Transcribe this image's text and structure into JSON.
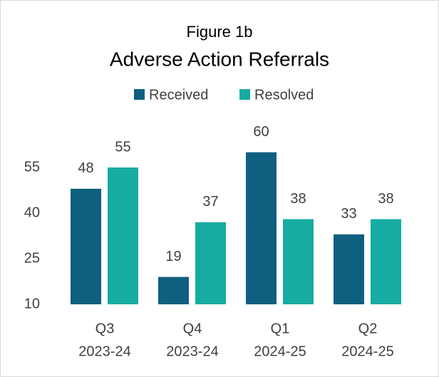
{
  "chart_data": {
    "type": "bar",
    "subtitle": "Figure 1b",
    "title": "Adverse Action Referrals",
    "categories": [
      [
        "Q3",
        "2023-24"
      ],
      [
        "Q4",
        "2023-24"
      ],
      [
        "Q1",
        "2024-25"
      ],
      [
        "Q2",
        "2024-25"
      ]
    ],
    "series": [
      {
        "name": "Received",
        "color": "#0f5f80",
        "values": [
          48,
          19,
          60,
          33
        ]
      },
      {
        "name": "Resolved",
        "color": "#16aca2",
        "values": [
          55,
          37,
          38,
          38
        ]
      }
    ],
    "ylim": [
      10,
      70
    ],
    "yticks": [
      10,
      25,
      40,
      55
    ],
    "grid": false,
    "legend": "top"
  }
}
